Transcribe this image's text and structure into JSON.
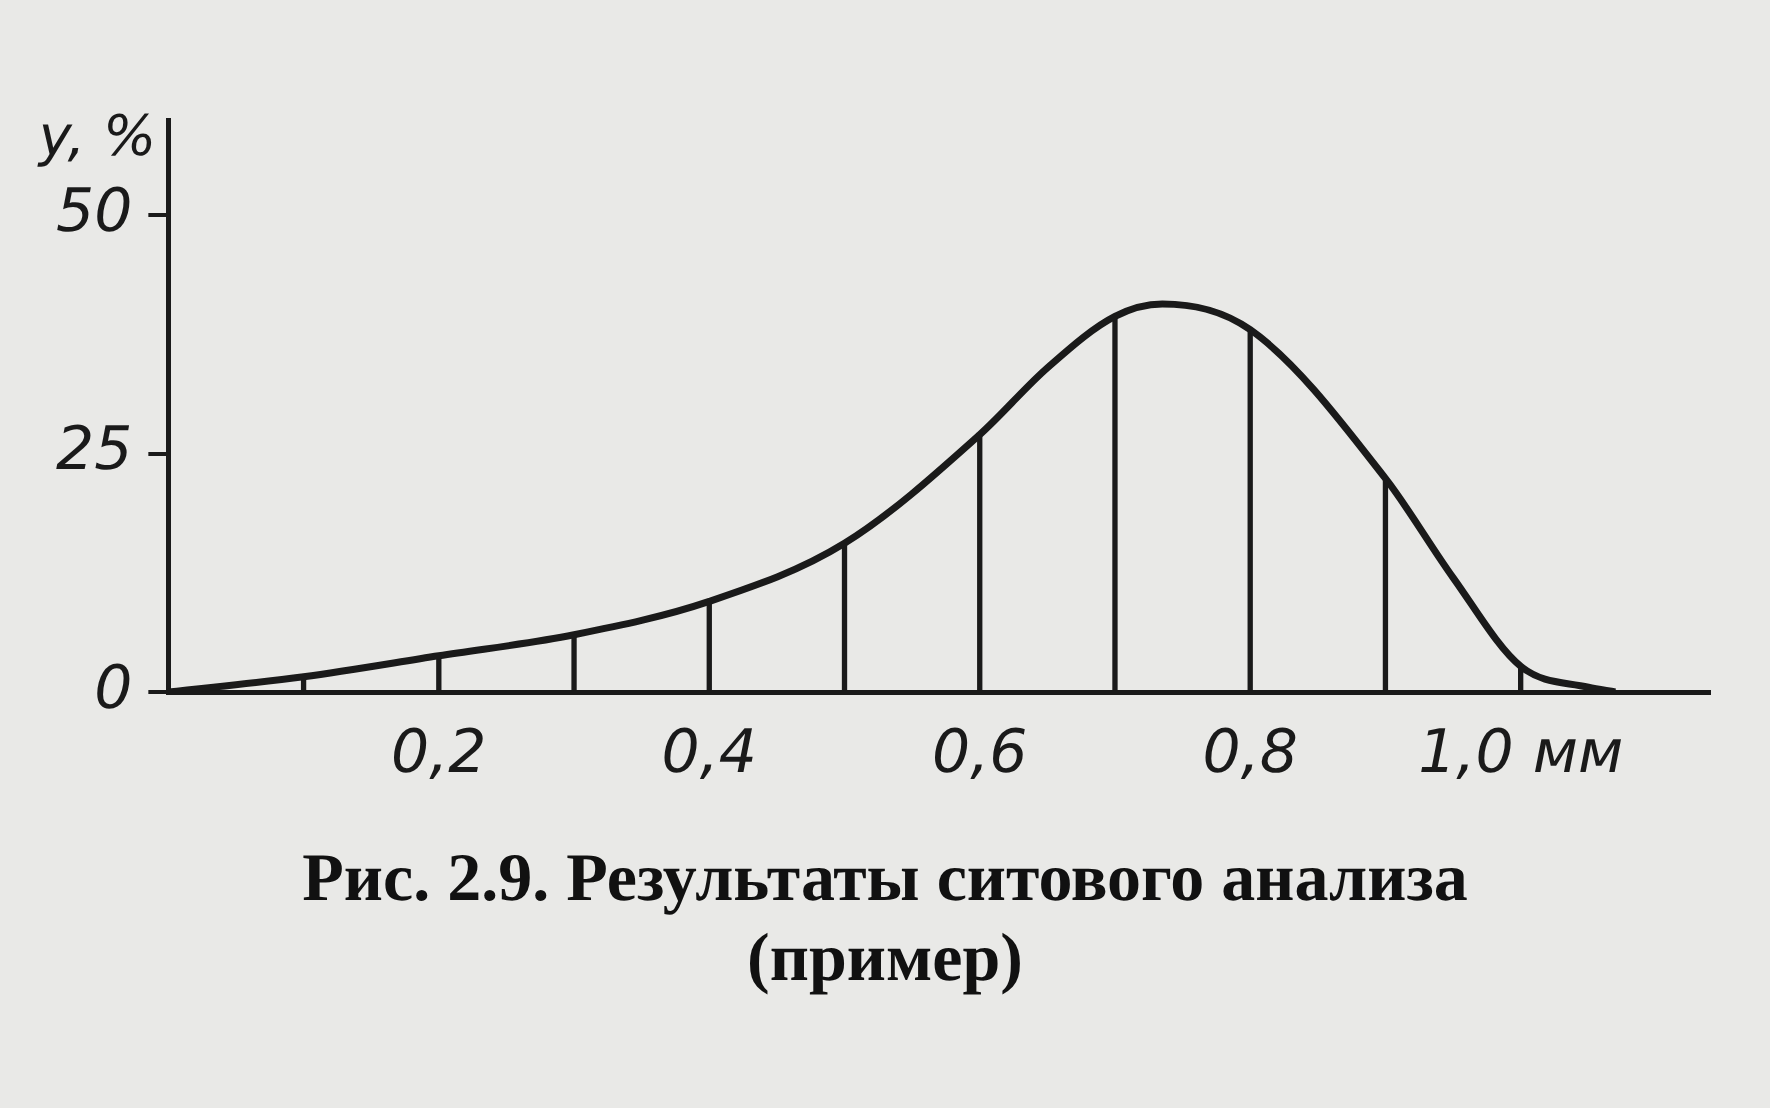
{
  "chart_data": {
    "type": "line",
    "title": "Рис. 2.9. Результаты ситового анализа (пример)",
    "ylabel": "y, %",
    "series": [
      {
        "color": "#1a1a1a",
        "x": [
          0,
          0.1,
          0.2,
          0.3,
          0.4,
          0.5,
          0.6,
          0.65,
          0.7,
          0.735,
          0.8,
          0.9,
          0.95,
          1.0,
          1.05,
          1.07
        ],
        "values": [
          0,
          1.6,
          3.8,
          6,
          9.5,
          15.6,
          27,
          34,
          39.4,
          40.7,
          38,
          22.4,
          12,
          2.7,
          0.5,
          0
        ]
      },
      {
        "type": "bar",
        "color": "#1a1a1a",
        "x": [
          0.1,
          0.2,
          0.3,
          0.4,
          0.5,
          0.6,
          0.7,
          0.8,
          0.9,
          1.0
        ],
        "values": [
          1.6,
          3.8,
          6,
          9.5,
          15.6,
          27,
          39.4,
          38,
          22.4,
          2.7
        ]
      }
    ],
    "xlim": [
      0,
      1.14
    ],
    "ylim": [
      0,
      60
    ],
    "xticks": [
      {
        "value": 0.2,
        "label": "0,2"
      },
      {
        "value": 0.4,
        "label": "0,4"
      },
      {
        "value": 0.6,
        "label": "0,6"
      },
      {
        "value": 0.8,
        "label": "0,8"
      },
      {
        "value": 1.0,
        "label": "1,0 мм"
      }
    ],
    "yticks": [
      0,
      25,
      50
    ],
    "grid": false,
    "legend": false,
    "marker": "none",
    "line_style": "solid"
  }
}
